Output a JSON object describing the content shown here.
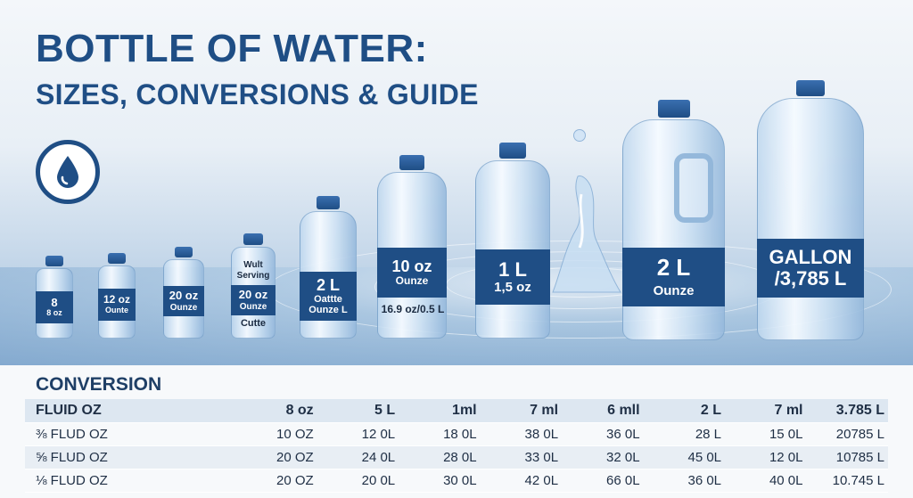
{
  "title": {
    "line1": "BOTTLE OF WATER:",
    "line2": "SIZES, CONVERSIONS & GUIDE"
  },
  "icons": {
    "badge": "water-drop-icon"
  },
  "colors": {
    "brand": "#1f4e85",
    "header_row": "#dde7f1",
    "alt_row": "#e8eef4"
  },
  "bottles": [
    {
      "line1": "8",
      "line2": "8 oz",
      "under": ""
    },
    {
      "line1": "12 oz",
      "line2": "Ounte",
      "under": ""
    },
    {
      "line1": "20 oz",
      "line2": "Ounze",
      "under": ""
    },
    {
      "top1": "Wult",
      "top2": "Serving",
      "line1": "20 oz",
      "line2": "Ounze",
      "under": "Cutte"
    },
    {
      "line1": "2 L",
      "line2": "Oattte",
      "line3": "Ounze L",
      "under": ""
    },
    {
      "line1": "10 oz",
      "line2": "Ounze",
      "under": "16.9 oz/0.5 L"
    },
    {
      "line1": "1 L",
      "line2": "1,5 oz",
      "under": ""
    },
    {
      "line1": "2 L",
      "line2": "Ounze",
      "under": ""
    },
    {
      "line1": "GALLON",
      "line2": "/3,785 L",
      "under": ""
    }
  ],
  "conversion": {
    "heading": "CONVERSION",
    "header": [
      "FLUID OZ",
      "8 oz",
      "5 L",
      "1ml",
      "7 ml",
      "6 mll",
      "2 L",
      "7 ml",
      "3.785 L"
    ],
    "rows": [
      [
        "⅜ FLUD OZ",
        "10 OZ",
        "12 0L",
        "18 0L",
        "38 0L",
        "36 0L",
        "28 L",
        "15 0L",
        "20785 L"
      ],
      [
        "⅝ FLUD OZ",
        "20 OZ",
        "24 0L",
        "28 0L",
        "33 0L",
        "32 0L",
        "45 0L",
        "12 0L",
        "10785 L"
      ],
      [
        "⅛ FLUD OZ",
        "20 OZ",
        "20 0L",
        "30 0L",
        "42 0L",
        "66 0L",
        "36 0L",
        "40 0L",
        "10.745 L"
      ]
    ]
  }
}
